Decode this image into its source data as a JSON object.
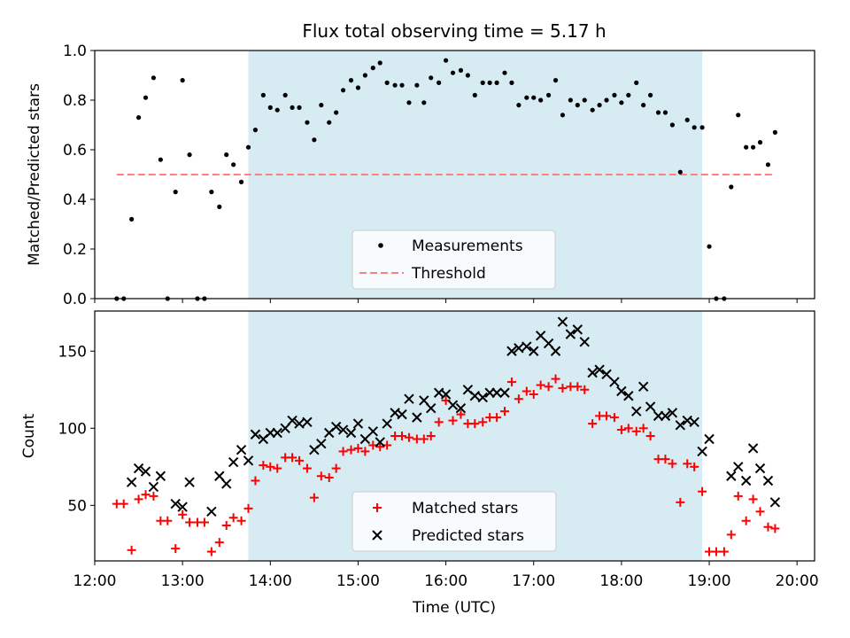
{
  "chart_data": [
    {
      "type": "scatter",
      "title": "Flux total observing time = 5.17 h",
      "xlabel": "",
      "ylabel": "Matched/Predicted stars",
      "xlim": [
        12.0,
        20.2
      ],
      "ylim": [
        0.0,
        1.0
      ],
      "yticks": [
        "0.0",
        "0.2",
        "0.4",
        "0.6",
        "0.8",
        "1.0"
      ],
      "shaded_span": [
        13.75,
        18.92
      ],
      "legend": {
        "placement": "lower center",
        "entries": [
          "Measurements",
          "Threshold"
        ]
      },
      "series": [
        {
          "name": "Measurements",
          "color": "#000000",
          "marker": "dot",
          "x": [
            12.25,
            12.33,
            12.42,
            12.5,
            12.58,
            12.67,
            12.75,
            12.83,
            12.92,
            13.0,
            13.08,
            13.17,
            13.25,
            13.33,
            13.42,
            13.5,
            13.58,
            13.67,
            13.75,
            13.83,
            13.92,
            14.0,
            14.08,
            14.17,
            14.25,
            14.33,
            14.42,
            14.5,
            14.58,
            14.67,
            14.75,
            14.83,
            14.92,
            15.0,
            15.08,
            15.17,
            15.25,
            15.33,
            15.42,
            15.5,
            15.58,
            15.67,
            15.75,
            15.83,
            15.92,
            16.0,
            16.08,
            16.17,
            16.25,
            16.33,
            16.42,
            16.5,
            16.58,
            16.67,
            16.75,
            16.83,
            16.92,
            17.0,
            17.08,
            17.17,
            17.25,
            17.33,
            17.42,
            17.5,
            17.58,
            17.67,
            17.75,
            17.83,
            17.92,
            18.0,
            18.08,
            18.17,
            18.25,
            18.33,
            18.42,
            18.5,
            18.58,
            18.67,
            18.75,
            18.83,
            18.92,
            19.0,
            19.08,
            19.17,
            19.25,
            19.33,
            19.42,
            19.5,
            19.58,
            19.67,
            19.75
          ],
          "y": [
            0.0,
            0.0,
            0.32,
            0.73,
            0.81,
            0.89,
            0.56,
            0.0,
            0.43,
            0.88,
            0.58,
            0.0,
            0.0,
            0.43,
            0.37,
            0.58,
            0.54,
            0.47,
            0.61,
            0.68,
            0.82,
            0.77,
            0.76,
            0.82,
            0.77,
            0.77,
            0.71,
            0.64,
            0.78,
            0.71,
            0.75,
            0.84,
            0.88,
            0.85,
            0.9,
            0.93,
            0.95,
            0.87,
            0.86,
            0.86,
            0.79,
            0.86,
            0.79,
            0.89,
            0.87,
            0.96,
            0.91,
            0.92,
            0.9,
            0.82,
            0.87,
            0.87,
            0.87,
            0.91,
            0.87,
            0.78,
            0.81,
            0.81,
            0.8,
            0.82,
            0.88,
            0.74,
            0.8,
            0.78,
            0.8,
            0.76,
            0.78,
            0.8,
            0.82,
            0.79,
            0.82,
            0.87,
            0.78,
            0.82,
            0.75,
            0.75,
            0.7,
            0.51,
            0.72,
            0.69,
            0.69,
            0.21,
            0.0,
            0.0,
            0.45,
            0.74,
            0.61,
            0.61,
            0.63,
            0.54,
            0.67
          ]
        },
        {
          "name": "Threshold",
          "color": "#ff7f7f",
          "style": "dashed",
          "x": [
            12.25,
            19.75
          ],
          "y": [
            0.5,
            0.5
          ]
        }
      ]
    },
    {
      "type": "scatter",
      "title": "",
      "xlabel": "Time (UTC)",
      "ylabel": "Count",
      "xlim": [
        12.0,
        20.2
      ],
      "ylim": [
        14,
        176
      ],
      "yticks": [
        "50",
        "100",
        "150"
      ],
      "xticks": [
        "12:00",
        "13:00",
        "14:00",
        "15:00",
        "16:00",
        "17:00",
        "18:00",
        "19:00",
        "20:00"
      ],
      "shaded_span": [
        13.75,
        18.92
      ],
      "legend": {
        "placement": "lower center",
        "entries": [
          "Matched stars",
          "Predicted stars"
        ]
      },
      "series": [
        {
          "name": "Matched stars",
          "color": "#ff0000",
          "marker": "plus",
          "x": [
            12.25,
            12.33,
            12.42,
            12.5,
            12.58,
            12.67,
            12.75,
            12.83,
            12.92,
            13.0,
            13.08,
            13.17,
            13.25,
            13.33,
            13.42,
            13.5,
            13.58,
            13.67,
            13.75,
            13.83,
            13.92,
            14.0,
            14.08,
            14.17,
            14.25,
            14.33,
            14.42,
            14.5,
            14.58,
            14.67,
            14.75,
            14.83,
            14.92,
            15.0,
            15.08,
            15.17,
            15.25,
            15.33,
            15.42,
            15.5,
            15.58,
            15.67,
            15.75,
            15.83,
            15.92,
            16.0,
            16.08,
            16.17,
            16.25,
            16.33,
            16.42,
            16.5,
            16.58,
            16.67,
            16.75,
            16.83,
            16.92,
            17.0,
            17.08,
            17.17,
            17.25,
            17.33,
            17.42,
            17.5,
            17.58,
            17.67,
            17.75,
            17.83,
            17.92,
            18.0,
            18.08,
            18.17,
            18.25,
            18.33,
            18.42,
            18.5,
            18.58,
            18.67,
            18.75,
            18.83,
            18.92,
            19.0,
            19.08,
            19.17,
            19.25,
            19.33,
            19.42,
            19.5,
            19.58,
            19.67,
            19.75
          ],
          "y": [
            51,
            51,
            21,
            54,
            57,
            56,
            40,
            40,
            22,
            44,
            39,
            39,
            39,
            20,
            26,
            37,
            42,
            40,
            48,
            66,
            76,
            75,
            74,
            81,
            81,
            79,
            74,
            55,
            69,
            68,
            74,
            85,
            86,
            87,
            85,
            89,
            88,
            89,
            95,
            95,
            94,
            93,
            93,
            95,
            104,
            118,
            105,
            109,
            103,
            103,
            104,
            107,
            107,
            111,
            130,
            119,
            124,
            122,
            128,
            127,
            132,
            126,
            127,
            127,
            125,
            103,
            108,
            108,
            107,
            99,
            100,
            98,
            100,
            95,
            80,
            80,
            77,
            52,
            77,
            75,
            59,
            20,
            20,
            20,
            31,
            56,
            40,
            54,
            46,
            36,
            35
          ]
        },
        {
          "name": "Predicted stars",
          "color": "#000000",
          "marker": "x",
          "x": [
            12.42,
            12.5,
            12.58,
            12.67,
            12.75,
            12.92,
            13.0,
            13.08,
            13.33,
            13.42,
            13.5,
            13.58,
            13.67,
            13.75,
            13.83,
            13.92,
            14.0,
            14.08,
            14.17,
            14.25,
            14.33,
            14.42,
            14.5,
            14.58,
            14.67,
            14.75,
            14.83,
            14.92,
            15.0,
            15.08,
            15.17,
            15.25,
            15.33,
            15.42,
            15.5,
            15.58,
            15.67,
            15.75,
            15.83,
            15.92,
            16.0,
            16.08,
            16.17,
            16.25,
            16.33,
            16.42,
            16.5,
            16.58,
            16.67,
            16.75,
            16.83,
            16.92,
            17.0,
            17.08,
            17.17,
            17.25,
            17.33,
            17.42,
            17.5,
            17.58,
            17.67,
            17.75,
            17.83,
            17.92,
            18.0,
            18.08,
            18.17,
            18.25,
            18.33,
            18.42,
            18.5,
            18.58,
            18.67,
            18.75,
            18.83,
            18.92,
            19.0,
            19.25,
            19.33,
            19.42,
            19.5,
            19.58,
            19.67,
            19.75
          ],
          "y": [
            65,
            74,
            72,
            62,
            69,
            51,
            49,
            65,
            46,
            69,
            64,
            78,
            86,
            79,
            96,
            93,
            97,
            97,
            100,
            105,
            103,
            104,
            86,
            90,
            97,
            101,
            99,
            97,
            103,
            93,
            98,
            91,
            103,
            110,
            109,
            119,
            107,
            118,
            113,
            123,
            122,
            115,
            113,
            125,
            121,
            120,
            123,
            123,
            123,
            150,
            152,
            153,
            150,
            160,
            155,
            150,
            169,
            161,
            164,
            156,
            136,
            138,
            135,
            130,
            124,
            121,
            111,
            127,
            114,
            108,
            108,
            110,
            102,
            105,
            104,
            85,
            93,
            69,
            75,
            66,
            87,
            74,
            66,
            52
          ]
        }
      ]
    }
  ]
}
